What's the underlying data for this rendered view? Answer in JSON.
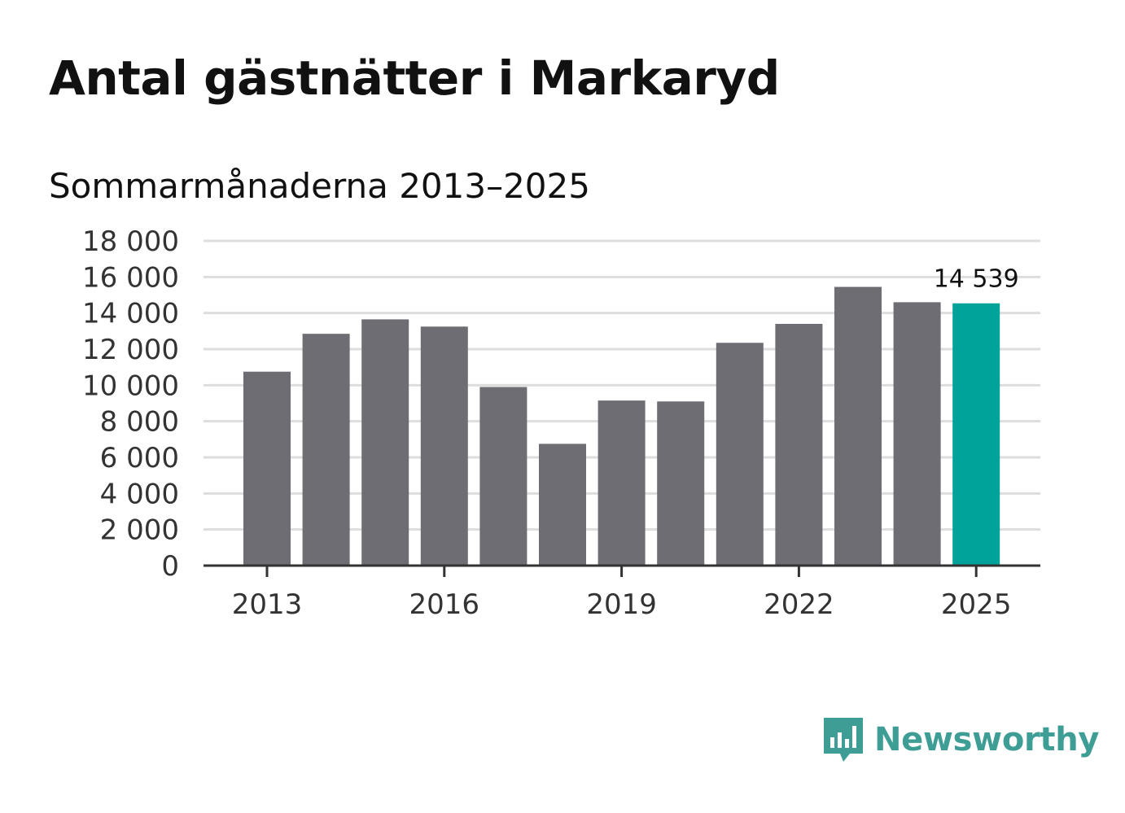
{
  "chart_data": {
    "type": "bar",
    "title": "Antal gästnätter i Markaryd",
    "subtitle": "Sommarmånaderna 2013–2025",
    "categories": [
      "2013",
      "2014",
      "2015",
      "2016",
      "2017",
      "2018",
      "2019",
      "2020",
      "2021",
      "2022",
      "2023",
      "2024",
      "2025"
    ],
    "values": [
      10750,
      12850,
      13650,
      13250,
      9900,
      6750,
      9150,
      9100,
      12350,
      13400,
      15450,
      14600,
      14539
    ],
    "ylim": [
      0,
      18000
    ],
    "yticks": [
      0,
      2000,
      4000,
      6000,
      8000,
      10000,
      12000,
      14000,
      16000,
      18000
    ],
    "ytick_labels": [
      "0",
      "2 000",
      "4 000",
      "6 000",
      "8 000",
      "10 000",
      "12 000",
      "14 000",
      "16 000",
      "18 000"
    ],
    "xtick_labels": [
      "2013",
      "2016",
      "2019",
      "2022",
      "2025"
    ],
    "highlight_label": "14 539",
    "xlabel": "",
    "ylabel": "",
    "grid": true,
    "colors": {
      "bar": "#6e6d73",
      "highlight": "#00a39a",
      "grid": "#dddddd",
      "axis": "#333333"
    }
  },
  "branding": {
    "logo_text": "Newsworthy",
    "logo_icon": "bar-chart-speech-bubble-icon",
    "logo_color": "#3e9e95"
  }
}
